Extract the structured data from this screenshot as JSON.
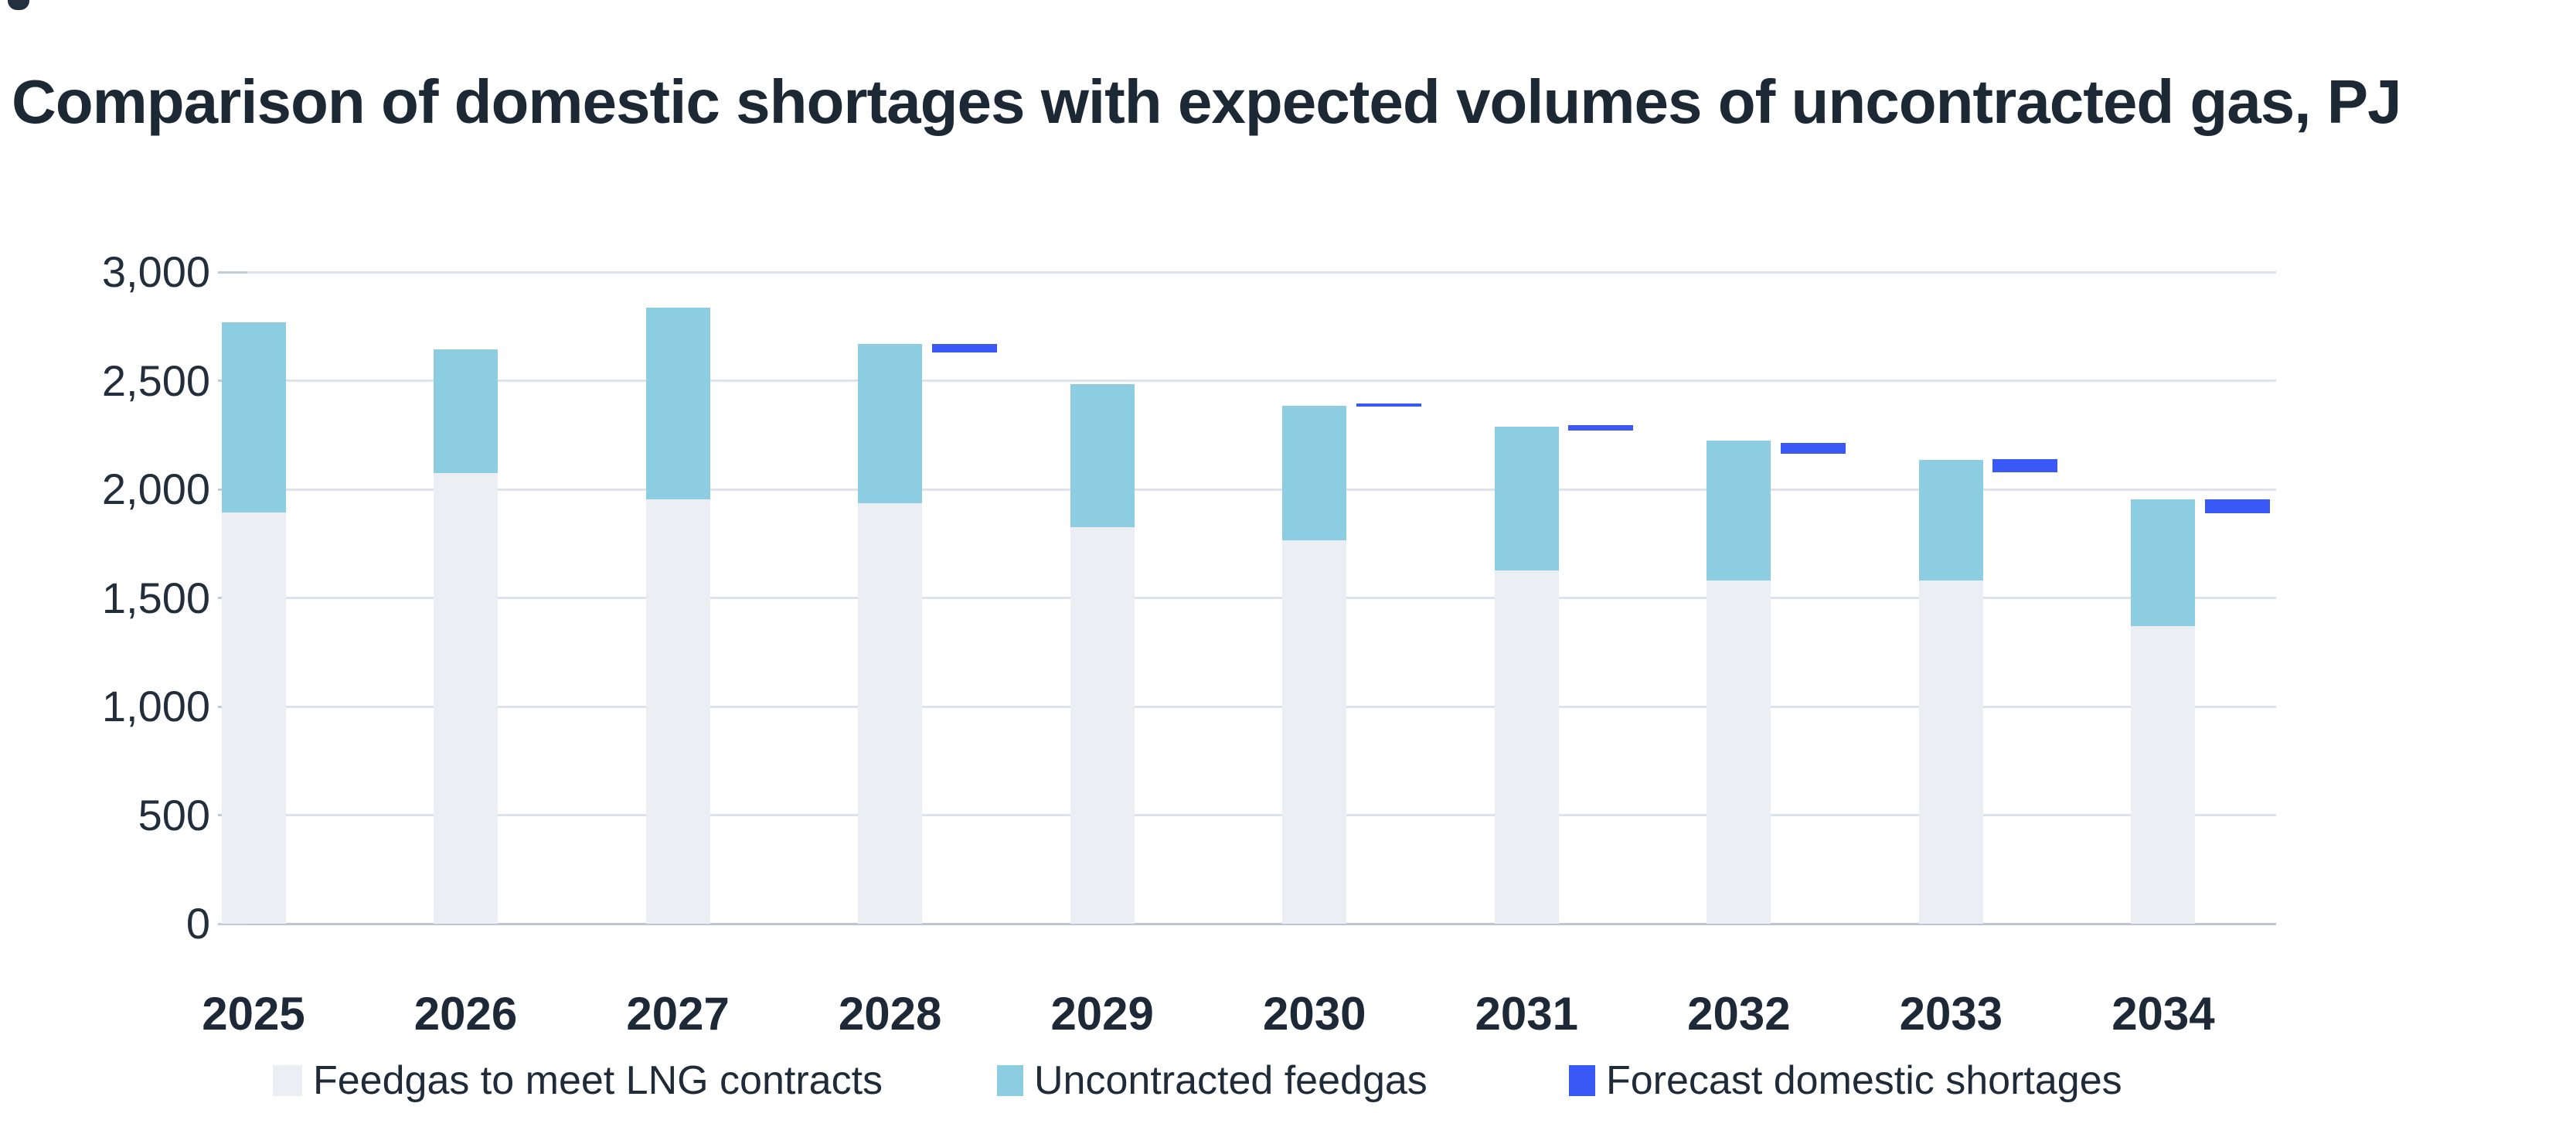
{
  "chart_data": {
    "type": "bar",
    "subtype": "stacked-columns-with-floating-markers",
    "title": "Comparison of domestic shortages with expected volumes of uncontracted gas, PJ",
    "unit": "PJ",
    "categories": [
      "2025",
      "2026",
      "2027",
      "2028",
      "2029",
      "2030",
      "2031",
      "2032",
      "2033",
      "2034"
    ],
    "series": [
      {
        "name": "Feedgas to meet LNG contracts",
        "role": "stacked-bar-base",
        "color": "#ebeef2",
        "values": [
          1895,
          2075,
          1955,
          1935,
          1825,
          1765,
          1625,
          1580,
          1580,
          1370
        ]
      },
      {
        "name": "Uncontracted feedgas",
        "role": "stacked-bar-top",
        "color": "#8ccde2",
        "values": [
          875,
          570,
          880,
          735,
          660,
          620,
          665,
          645,
          555,
          585
        ]
      },
      {
        "name": "Forecast domestic shortages",
        "role": "floating-marker",
        "color": "#3a58f5",
        "marker_bottom": [
          null,
          null,
          null,
          2630,
          null,
          2380,
          2270,
          2165,
          2080,
          1890
        ],
        "marker_top": [
          null,
          null,
          null,
          2670,
          null,
          2395,
          2295,
          2215,
          2140,
          1955
        ]
      }
    ],
    "stack_totals": [
      2770,
      2645,
      2835,
      2670,
      2485,
      2385,
      2290,
      2225,
      2135,
      1955
    ],
    "y_axis": {
      "min": 0,
      "max": 3000,
      "tick_step": 500,
      "tick_labels": [
        "0",
        "500",
        "1,000",
        "1,500",
        "2,000",
        "2,500",
        "3,000"
      ]
    },
    "grid": true,
    "legend_position": "bottom"
  },
  "colors": {
    "background": "#ffffff",
    "gridline": "#dce3ec",
    "axis_line": "#bcc7d3",
    "tick": "#c3cdd9",
    "title_text": "#1d2835",
    "axis_text": "#222e3c",
    "category_text": "#1d2936",
    "legend_text": "#1f2b39"
  }
}
